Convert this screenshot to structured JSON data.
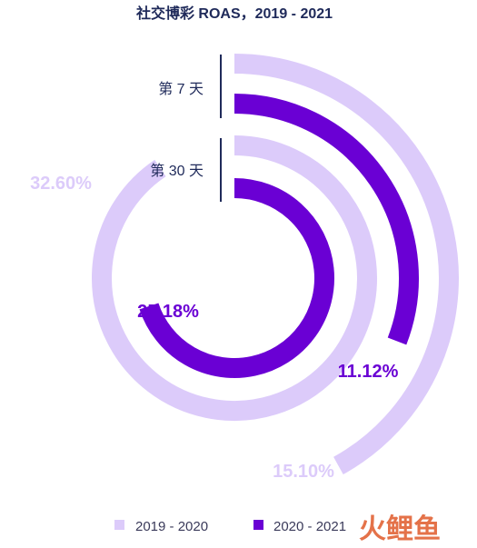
{
  "title": "社交博彩 ROAS，2019 - 2021",
  "chart_data": {
    "type": "radial-bar",
    "title": "社交博彩 ROAS，2019 - 2021",
    "groups": [
      {
        "label": "第 7 天",
        "values": {
          "2019 - 2020": 15.1,
          "2020 - 2021": 11.12
        }
      },
      {
        "label": "第 30 天",
        "values": {
          "2019 - 2020": 32.6,
          "2020 - 2021": 25.18
        }
      }
    ],
    "series": [
      {
        "name": "2019 - 2020",
        "color": "#dccbfa"
      },
      {
        "name": "2020 - 2021",
        "color": "#6a00d4"
      }
    ],
    "value_labels": {
      "day7_2019": "15.10%",
      "day7_2020": "11.12%",
      "day30_2019": "32.60%",
      "day30_2020": "25.18%"
    },
    "legend_position": "bottom"
  },
  "legend": [
    {
      "label": "2019 - 2020",
      "color": "#dccbfa"
    },
    {
      "label": "2020 - 2021",
      "color": "#6a00d4"
    }
  ],
  "watermark": "火鲤鱼"
}
